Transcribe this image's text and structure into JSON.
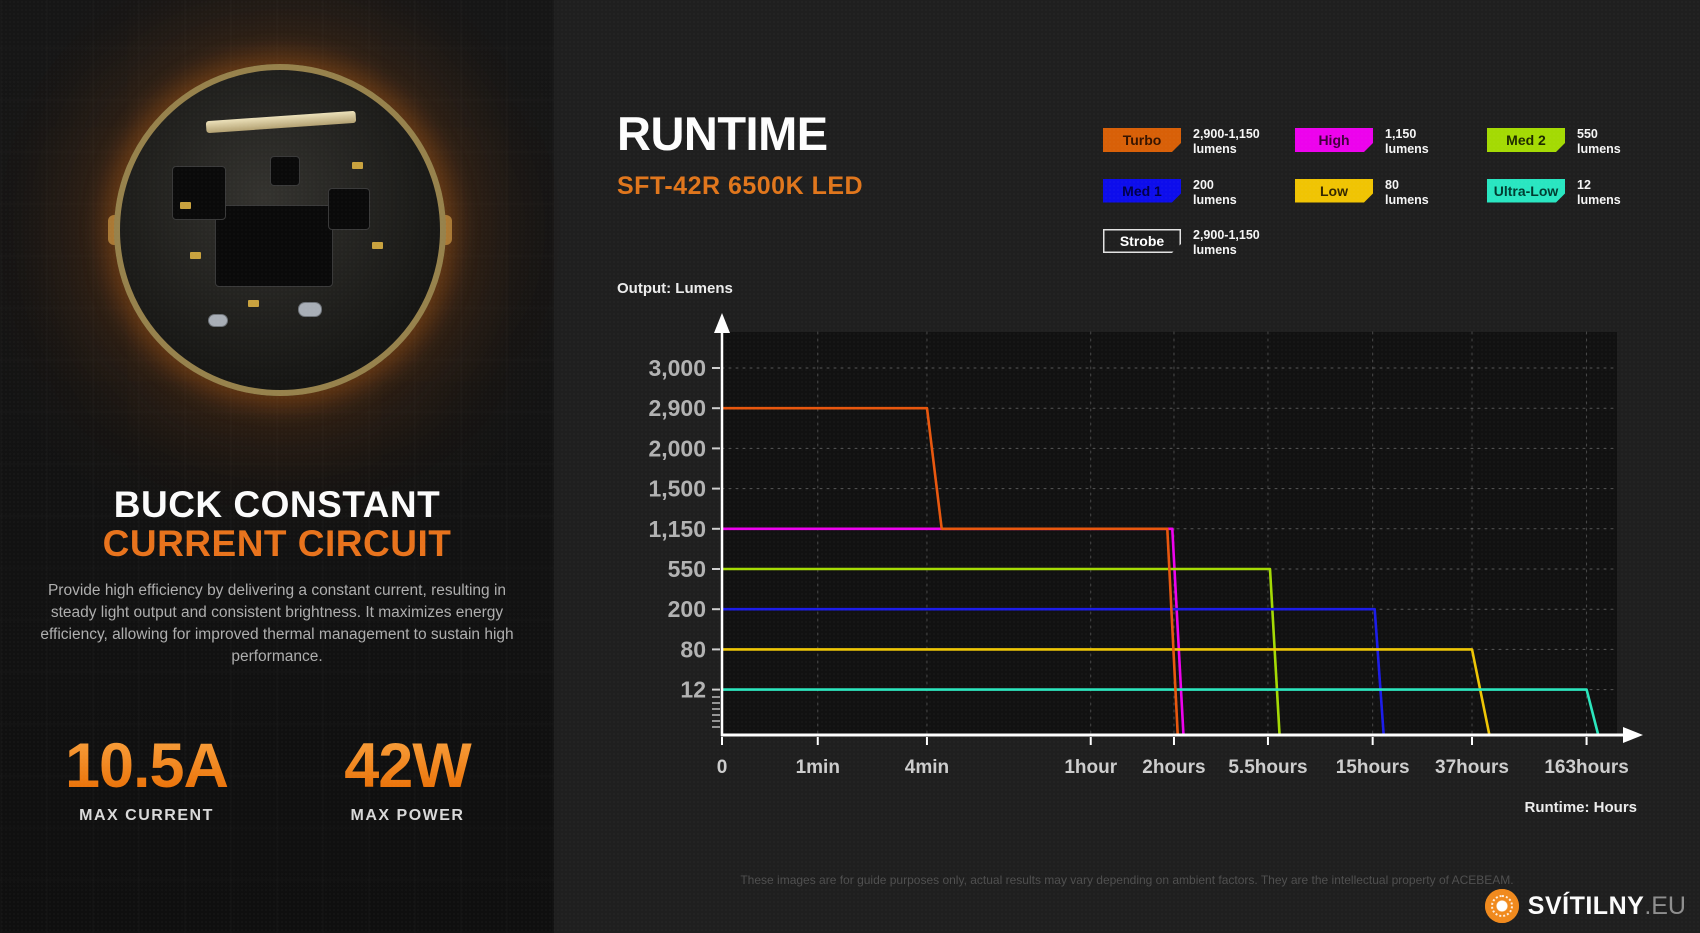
{
  "left_panel": {
    "heading_line1": "BUCK CONSTANT",
    "heading_line2": "CURRENT CIRCUIT",
    "description": "Provide high efficiency by delivering a constant current, resulting in steady light output and consistent brightness. It maximizes energy efficiency, allowing for improved thermal management to sustain high performance.",
    "stats": [
      {
        "value": "10.5A",
        "label": "MAX CURRENT"
      },
      {
        "value": "42W",
        "label": "MAX POWER"
      }
    ]
  },
  "header": {
    "title": "RUNTIME",
    "subtitle": "SFT-42R 6500K LED"
  },
  "legend": {
    "items": [
      {
        "label": "Turbo",
        "value": "2,900-1,150",
        "unit": "lumens",
        "color": "#d86008",
        "text_color": "#361400",
        "type": "filled"
      },
      {
        "label": "High",
        "value": "1,150",
        "unit": "lumens",
        "color": "#ed02ed",
        "text_color": "#40003c",
        "type": "filled"
      },
      {
        "label": "Med 2",
        "value": "550",
        "unit": "lumens",
        "color": "#a4da04",
        "text_color": "#1e2a00",
        "type": "filled"
      },
      {
        "label": "Med 1",
        "value": "200",
        "unit": "lumens",
        "color": "#0d0dec",
        "text_color": "#00004a",
        "type": "filled"
      },
      {
        "label": "Low",
        "value": "80",
        "unit": "lumens",
        "color": "#f0c403",
        "text_color": "#342800",
        "type": "filled"
      },
      {
        "label": "Ultra-Low",
        "value": "12",
        "unit": "lumens",
        "color": "#29e6c1",
        "text_color": "#003c30",
        "type": "filled"
      },
      {
        "label": "Strobe",
        "value": "2,900-1,150",
        "unit": "lumens",
        "color": "transparent",
        "text_color": "#ffffff",
        "type": "outline"
      }
    ]
  },
  "chart_data": {
    "type": "line",
    "title": "",
    "ylabel": "Output: Lumens",
    "xlabel": "Runtime: Hours",
    "grid": true,
    "legend_position": "top-right",
    "y_levels": [
      {
        "label": "3,000",
        "value": 3000
      },
      {
        "label": "2,900",
        "value": 2900
      },
      {
        "label": "2,000",
        "value": 2000
      },
      {
        "label": "1,500",
        "value": 1500
      },
      {
        "label": "1,150",
        "value": 1150
      },
      {
        "label": "550",
        "value": 550
      },
      {
        "label": "200",
        "value": 200
      },
      {
        "label": "80",
        "value": 80
      },
      {
        "label": "12",
        "value": 12
      }
    ],
    "x_ticks": [
      {
        "label": "0",
        "pos": 0.0
      },
      {
        "label": "1min",
        "pos": 0.107
      },
      {
        "label": "4min",
        "pos": 0.229
      },
      {
        "label": "1hour",
        "pos": 0.412
      },
      {
        "label": "2hours",
        "pos": 0.505
      },
      {
        "label": "5.5hours",
        "pos": 0.61
      },
      {
        "label": "15hours",
        "pos": 0.727
      },
      {
        "label": "37hours",
        "pos": 0.838
      },
      {
        "label": "163hours",
        "pos": 0.966
      }
    ],
    "series": [
      {
        "name": "High",
        "color": "#ed02ed",
        "points": [
          [
            0,
            1150
          ],
          [
            3.98,
            1150
          ],
          [
            4.1,
            0
          ]
        ]
      },
      {
        "name": "Med 2",
        "color": "#a4da04",
        "points": [
          [
            0,
            550
          ],
          [
            5.02,
            550
          ],
          [
            5.11,
            0
          ]
        ]
      },
      {
        "name": "Med 1",
        "color": "#1c1ce8",
        "points": [
          [
            0,
            200
          ],
          [
            6.02,
            200
          ],
          [
            6.11,
            0
          ]
        ]
      },
      {
        "name": "Low",
        "color": "#eec605",
        "points": [
          [
            0,
            80
          ],
          [
            7.0,
            80
          ],
          [
            7.15,
            0
          ]
        ]
      },
      {
        "name": "Ultra-Low",
        "color": "#2be6bd",
        "points": [
          [
            0,
            12
          ],
          [
            8.0,
            12
          ],
          [
            8.1,
            0
          ]
        ]
      },
      {
        "name": "Turbo",
        "color": "#e8570e",
        "points": [
          [
            0,
            2900
          ],
          [
            2,
            2900
          ],
          [
            2.09,
            1150
          ],
          [
            3.92,
            1150
          ],
          [
            4.04,
            0
          ]
        ]
      }
    ]
  },
  "footer": {
    "disclaimer": "These images are for guide purposes only, actual results may vary depending on ambient factors. They are the intellectual property of ACEBEAM.",
    "brand": "SVÍTILNY",
    "brand_suffix": ".EU"
  }
}
